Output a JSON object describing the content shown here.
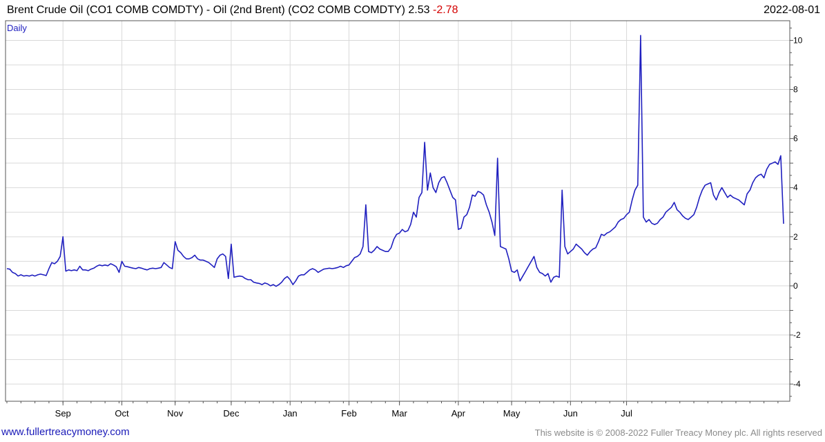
{
  "header": {
    "title_main": "Brent Crude Oil  (CO1 COMB COMDTY) - Oil (2nd Brent) (CO2 COMB COMDTY) 2.53",
    "title_change": "-2.78",
    "date": "2022-08-01"
  },
  "footer": {
    "website": "www.fullertreacymoney.com",
    "copyright": "This website is © 2008-2022 Fuller Treacy Money plc. All rights reserved"
  },
  "colors": {
    "line": "#1f1fbf",
    "grid": "#d9d9d9",
    "negative": "#d40000",
    "frame": "#555555"
  },
  "chart_data": {
    "type": "line",
    "frequency_label": "Daily",
    "series": [
      {
        "values": [
          0.7,
          0.68,
          0.55,
          0.5,
          0.4,
          0.45,
          0.4,
          0.42,
          0.4,
          0.44,
          0.4,
          0.45,
          0.48,
          0.45,
          0.42,
          0.7,
          0.95,
          0.9,
          1.0,
          1.2,
          2.0,
          0.6,
          0.65,
          0.62,
          0.65,
          0.62,
          0.8,
          0.65,
          0.65,
          0.62,
          0.68,
          0.72,
          0.8,
          0.85,
          0.82,
          0.85,
          0.82,
          0.9,
          0.85,
          0.78,
          0.55,
          1.0,
          0.8,
          0.78,
          0.75,
          0.72,
          0.7,
          0.75,
          0.72,
          0.68,
          0.65,
          0.7,
          0.72,
          0.7,
          0.72,
          0.75,
          0.95,
          0.85,
          0.75,
          0.7,
          1.8,
          1.45,
          1.35,
          1.2,
          1.1,
          1.1,
          1.15,
          1.25,
          1.1,
          1.05,
          1.05,
          1.0,
          0.95,
          0.85,
          0.75,
          1.1,
          1.25,
          1.3,
          1.2,
          0.3,
          1.7,
          0.35,
          0.38,
          0.4,
          0.38,
          0.3,
          0.25,
          0.25,
          0.15,
          0.12,
          0.1,
          0.05,
          0.12,
          0.08,
          0.0,
          0.05,
          -0.02,
          0.05,
          0.15,
          0.3,
          0.38,
          0.25,
          0.05,
          0.2,
          0.4,
          0.45,
          0.45,
          0.55,
          0.65,
          0.7,
          0.65,
          0.55,
          0.62,
          0.68,
          0.7,
          0.72,
          0.7,
          0.72,
          0.75,
          0.8,
          0.75,
          0.82,
          0.85,
          1.0,
          1.15,
          1.2,
          1.3,
          1.6,
          3.3,
          1.4,
          1.35,
          1.45,
          1.6,
          1.5,
          1.45,
          1.4,
          1.4,
          1.55,
          1.9,
          2.1,
          2.15,
          2.3,
          2.2,
          2.25,
          2.5,
          3.0,
          2.8,
          3.6,
          3.8,
          5.85,
          3.9,
          4.6,
          4.0,
          3.8,
          4.2,
          4.4,
          4.45,
          4.2,
          3.9,
          3.6,
          3.5,
          2.3,
          2.35,
          2.8,
          2.9,
          3.2,
          3.7,
          3.65,
          3.85,
          3.8,
          3.7,
          3.3,
          3.0,
          2.6,
          2.05,
          5.2,
          1.6,
          1.55,
          1.5,
          1.1,
          0.6,
          0.55,
          0.65,
          0.2,
          0.4,
          0.6,
          0.8,
          1.0,
          1.2,
          0.75,
          0.55,
          0.5,
          0.4,
          0.5,
          0.15,
          0.35,
          0.4,
          0.35,
          3.9,
          1.6,
          1.3,
          1.4,
          1.5,
          1.7,
          1.6,
          1.5,
          1.35,
          1.25,
          1.4,
          1.5,
          1.55,
          1.8,
          2.1,
          2.05,
          2.15,
          2.2,
          2.3,
          2.4,
          2.6,
          2.7,
          2.75,
          2.9,
          3.0,
          3.5,
          3.9,
          4.1,
          10.2,
          2.8,
          2.6,
          2.7,
          2.55,
          2.5,
          2.55,
          2.7,
          2.8,
          3.0,
          3.1,
          3.2,
          3.4,
          3.1,
          3.0,
          2.85,
          2.75,
          2.7,
          2.8,
          2.9,
          3.2,
          3.6,
          3.9,
          4.1,
          4.15,
          4.2,
          3.7,
          3.5,
          3.8,
          4.0,
          3.8,
          3.6,
          3.7,
          3.6,
          3.55,
          3.5,
          3.4,
          3.3,
          3.75,
          3.9,
          4.2,
          4.4,
          4.5,
          4.55,
          4.4,
          4.75,
          4.95,
          5.0,
          5.05,
          4.95,
          5.3,
          2.53
        ]
      }
    ],
    "x_ticks": [
      "Sep",
      "Oct",
      "Nov",
      "Dec",
      "Jan",
      "Feb",
      "Mar",
      "Apr",
      "May",
      "Jun",
      "Jul"
    ],
    "x_tick_index": [
      20,
      41,
      60,
      80,
      101,
      122,
      140,
      161,
      180,
      201,
      221
    ],
    "y_ticks": [
      "-4",
      "-2",
      "0",
      "2",
      "4",
      "6",
      "8",
      "10"
    ],
    "y_values": [
      -4,
      -2,
      0,
      2,
      4,
      6,
      8,
      10
    ],
    "ylim": [
      -4.7,
      10.8
    ],
    "grid": true
  }
}
